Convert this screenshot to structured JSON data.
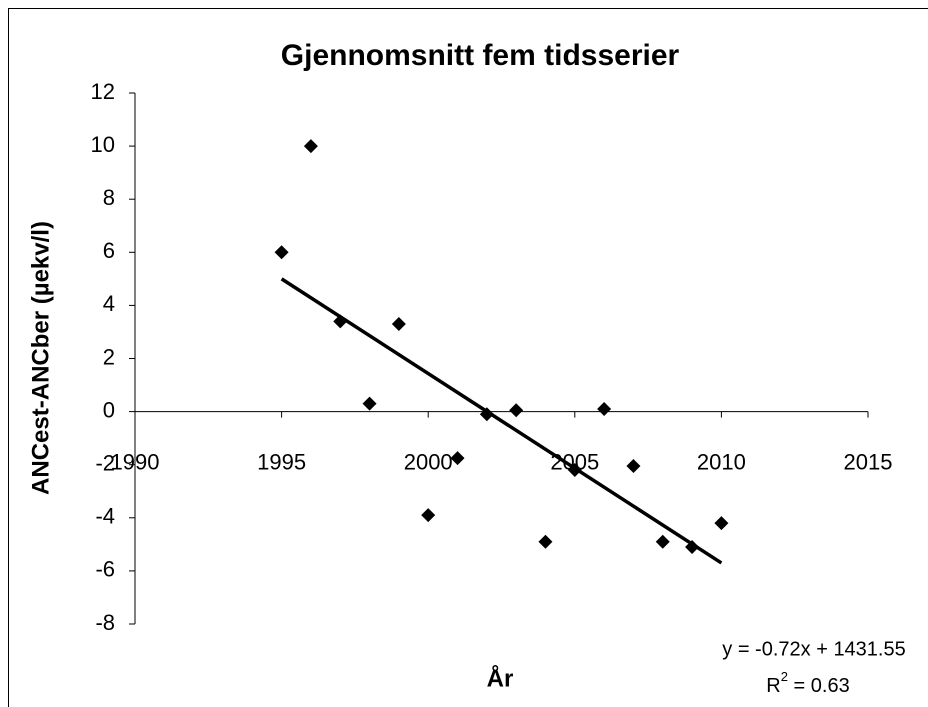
{
  "chart_data": {
    "type": "scatter",
    "title": "Gjennomsnitt fem tidsserier",
    "x_label": "År",
    "y_label": "ANCest-ANCber (µekv/l)",
    "x": [
      1995,
      1996,
      1997,
      1998,
      1999,
      2000,
      2001,
      2002,
      2003,
      2004,
      2005,
      2006,
      2007,
      2008,
      2009,
      2010
    ],
    "series": [
      {
        "color": "#000000",
        "values": [
          6.0,
          10.0,
          3.4,
          0.3,
          3.3,
          -3.9,
          -1.75,
          -0.1,
          0.05,
          -4.9,
          -2.2,
          0.1,
          -2.05,
          -4.9,
          -5.1,
          -4.2
        ]
      }
    ],
    "trendline": {
      "x": [
        1995,
        2010
      ],
      "values": [
        5.0,
        -5.7
      ],
      "color": "#000000"
    },
    "equation": "y = -0.72x + 1431.55",
    "r2_label": {
      "base": "R",
      "sup": "2",
      "rest": " = 0.63"
    },
    "xlim": [
      1990,
      2015
    ],
    "ylim": [
      -8,
      12
    ],
    "xticks": [
      1990,
      1995,
      2000,
      2005,
      2010,
      2015
    ],
    "yticks": [
      -8,
      -6,
      -4,
      -2,
      0,
      2,
      4,
      6,
      8,
      10,
      12
    ]
  }
}
